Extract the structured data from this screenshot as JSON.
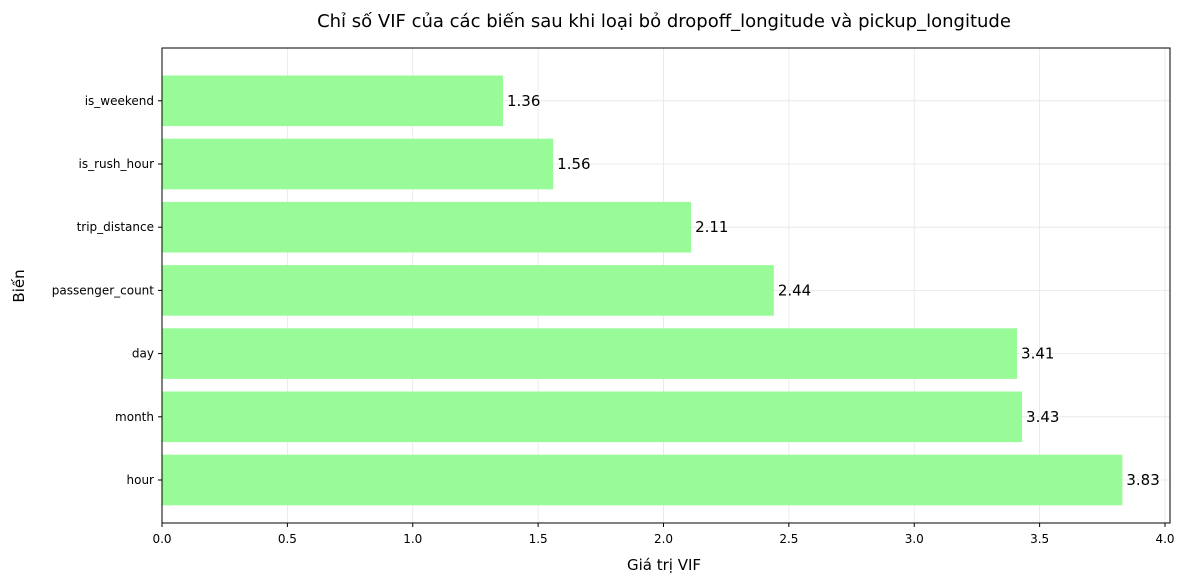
{
  "chart_data": {
    "type": "bar",
    "orientation": "horizontal",
    "title": "Chỉ số VIF của các biến sau khi loại bỏ dropoff_longitude và pickup_longitude",
    "xlabel": "Giá trị VIF",
    "ylabel": "Biến",
    "categories": [
      "hour",
      "month",
      "day",
      "passenger_count",
      "trip_distance",
      "is_rush_hour",
      "is_weekend"
    ],
    "values": [
      3.83,
      3.43,
      3.41,
      2.44,
      2.11,
      1.56,
      1.36
    ],
    "data_labels": [
      "3.83",
      "3.43",
      "3.41",
      "2.44",
      "2.11",
      "1.56",
      "1.36"
    ],
    "xticks": [
      "0.0",
      "0.5",
      "1.0",
      "1.5",
      "2.0",
      "2.5",
      "3.0",
      "3.5",
      "4.0"
    ],
    "xlim": [
      0,
      4.02
    ],
    "grid": true,
    "colors": {
      "bar": "#98fb98",
      "grid": "#e6e6e6",
      "axis": "#000000"
    }
  }
}
